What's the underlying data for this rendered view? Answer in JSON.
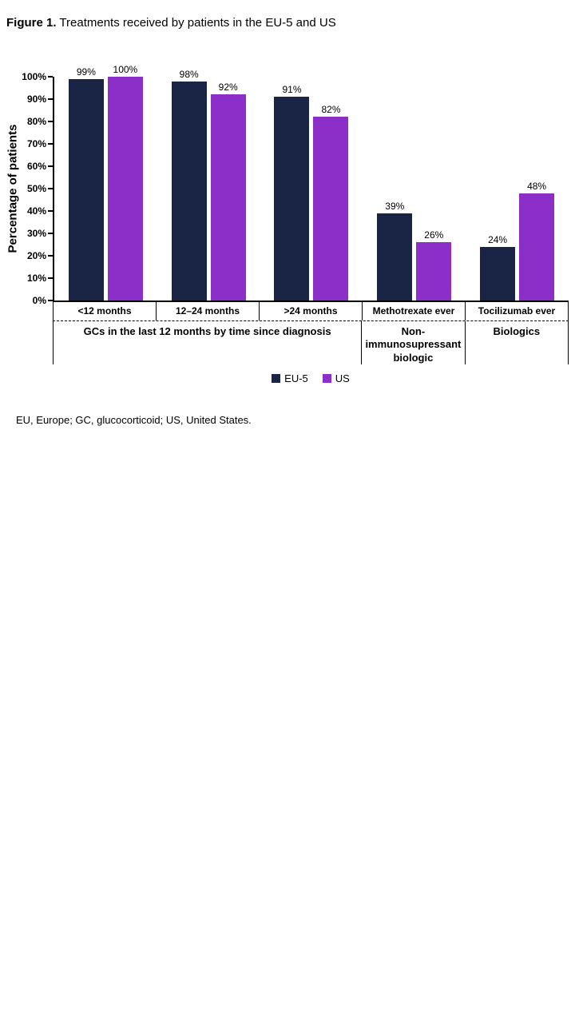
{
  "title": {
    "prefix": "Figure 1.",
    "text": " Treatments received by patients in the EU-5 and US"
  },
  "footnote": "EU, Europe; GC, glucocorticoid; US, United States.",
  "chart_data": {
    "type": "bar",
    "title": "Figure 1. Treatments received by patients in the EU-5 and US",
    "xlabel": "",
    "ylabel": "Percentage of patients",
    "ylim": [
      0,
      100
    ],
    "ytick_step": 10,
    "ytick_suffix": "%",
    "grid": false,
    "legend_position": "bottom",
    "categories": [
      "<12 months",
      "12–24 months",
      ">24 months",
      "Methotrexate ever",
      "Tocilizumab ever"
    ],
    "series": [
      {
        "name": "EU-5",
        "color": "#1a2445",
        "values": [
          99,
          98,
          91,
          39,
          24
        ]
      },
      {
        "name": "US",
        "color": "#8c2fc9",
        "values": [
          100,
          92,
          82,
          26,
          48
        ]
      }
    ],
    "value_label_suffix": "%",
    "groups": [
      {
        "label": "GCs in the last 12 months by time since diagnosis",
        "span": 3
      },
      {
        "label": "Non-\nimmunosupressant\nbiologic",
        "span": 1
      },
      {
        "label": "Biologics",
        "span": 1
      }
    ]
  }
}
